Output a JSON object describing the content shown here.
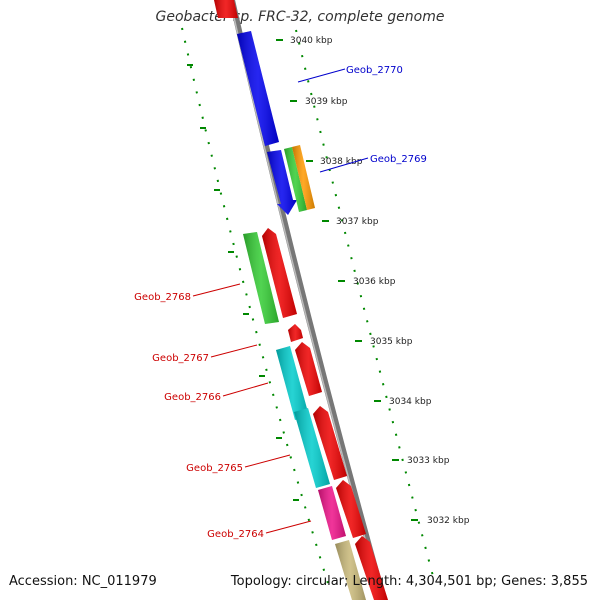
{
  "title": "Geobacter sp. FRC-32, complete genome",
  "footer": {
    "accession": "Accession: NC_011979",
    "summary": "Topology: circular; Length: 4,304,501 bp; Genes: 3,855"
  },
  "colors": {
    "blue_gene": "#0000ee",
    "red_gene": "#ee0000",
    "green_gene": "#33cc33",
    "orange_gene": "#ff9900",
    "cyan_gene": "#00cccc",
    "magenta_gene": "#ee1188",
    "khaki_gene": "#c8b878",
    "tick": "#008800",
    "backbone": "#777777",
    "label_blue": "#0000cc",
    "label_red": "#cc0000"
  },
  "scale_labels": [
    "3040 kbp",
    "3039 kbp",
    "3038 kbp",
    "3037 kbp",
    "3036 kbp",
    "3035 kbp",
    "3034 kbp",
    "3033 kbp",
    "3032 kbp"
  ],
  "gene_labels": [
    {
      "text": "Geob_2770",
      "color": "label_blue"
    },
    {
      "text": "Geob_2769",
      "color": "label_blue"
    },
    {
      "text": "Geob_2768",
      "color": "label_red"
    },
    {
      "text": "Geob_2767",
      "color": "label_red"
    },
    {
      "text": "Geob_2766",
      "color": "label_red"
    },
    {
      "text": "Geob_2765",
      "color": "label_red"
    },
    {
      "text": "Geob_2764",
      "color": "label_red"
    }
  ]
}
